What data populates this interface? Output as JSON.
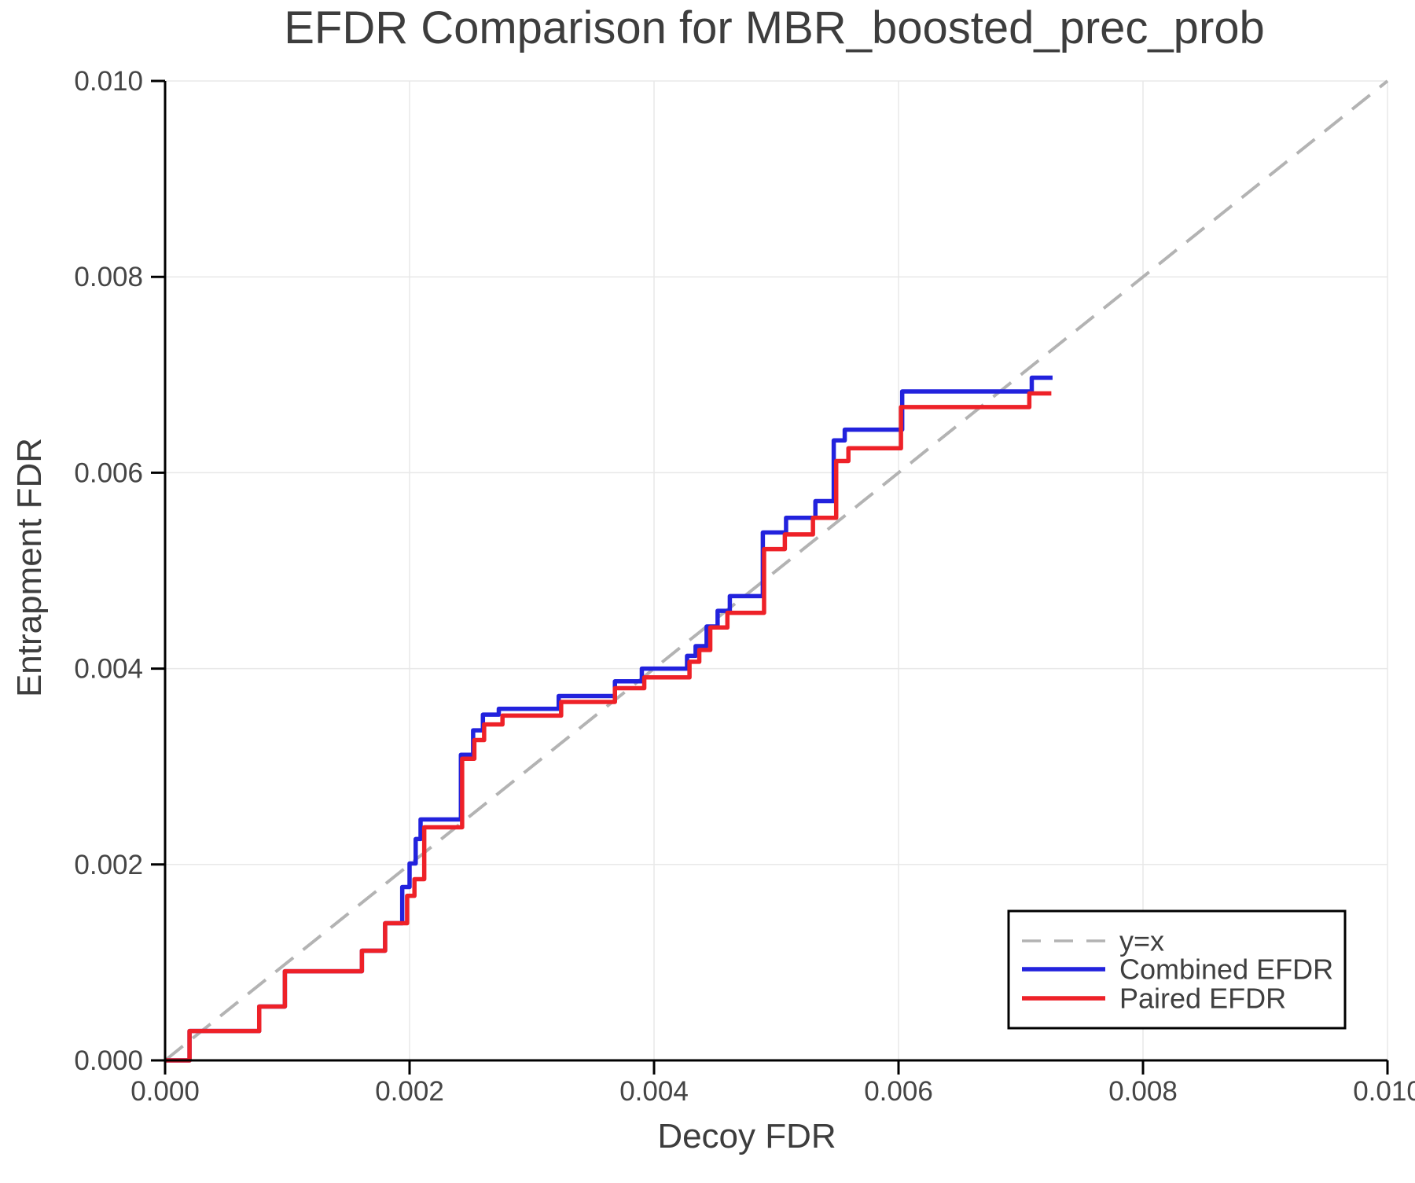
{
  "colors": {
    "background": "#ffffff",
    "grid": "#e8e8e8",
    "spine": "#000000",
    "title_text": "#3d3d3d",
    "tick_text": "#454545",
    "legend_border": "#000000",
    "identity_line": "#b3b3b3",
    "combined_line": "#2222dd",
    "paired_line": "#ee2128"
  },
  "chart_data": {
    "type": "line",
    "title": "EFDR Comparison for MBR_boosted_prec_prob",
    "xlabel": "Decoy FDR",
    "ylabel": "Entrapment FDR",
    "xlim": [
      0.0,
      0.01
    ],
    "ylim": [
      0.0,
      0.01
    ],
    "grid": true,
    "legend_position": "lower right",
    "x_ticks": {
      "values": [
        0.0,
        0.002,
        0.004,
        0.006,
        0.008,
        0.01
      ],
      "labels": [
        "0.000",
        "0.002",
        "0.004",
        "0.006",
        "0.008",
        "0.010"
      ]
    },
    "y_ticks": {
      "values": [
        0.0,
        0.002,
        0.004,
        0.006,
        0.008,
        0.01
      ],
      "labels": [
        "0.000",
        "0.002",
        "0.004",
        "0.006",
        "0.008",
        "0.010"
      ]
    },
    "series": [
      {
        "name": "y=x",
        "style": "dashed",
        "color": "#b3b3b3",
        "points": [
          [
            0.0,
            0.0
          ],
          [
            0.01,
            0.01
          ]
        ]
      },
      {
        "name": "Combined EFDR",
        "style": "solid",
        "color": "#2222dd",
        "points": [
          [
            0.0,
            0.0
          ],
          [
            0.0002,
            0.0
          ],
          [
            0.0002,
            0.0003
          ],
          [
            0.00077,
            0.0003
          ],
          [
            0.00077,
            0.00055
          ],
          [
            0.00098,
            0.00055
          ],
          [
            0.00098,
            0.00091
          ],
          [
            0.00161,
            0.00091
          ],
          [
            0.00161,
            0.00112
          ],
          [
            0.0018,
            0.00112
          ],
          [
            0.0018,
            0.0014
          ],
          [
            0.00194,
            0.0014
          ],
          [
            0.00194,
            0.00177
          ],
          [
            0.002,
            0.00177
          ],
          [
            0.002,
            0.00201
          ],
          [
            0.00205,
            0.00201
          ],
          [
            0.00205,
            0.00226
          ],
          [
            0.00209,
            0.00226
          ],
          [
            0.00209,
            0.00246
          ],
          [
            0.00242,
            0.00246
          ],
          [
            0.00242,
            0.00312
          ],
          [
            0.00252,
            0.00312
          ],
          [
            0.00252,
            0.00337
          ],
          [
            0.0026,
            0.00337
          ],
          [
            0.0026,
            0.00353
          ],
          [
            0.00273,
            0.00353
          ],
          [
            0.00273,
            0.00359
          ],
          [
            0.00322,
            0.00359
          ],
          [
            0.00322,
            0.00372
          ],
          [
            0.00368,
            0.00372
          ],
          [
            0.00368,
            0.00387
          ],
          [
            0.0039,
            0.00387
          ],
          [
            0.0039,
            0.004
          ],
          [
            0.00427,
            0.004
          ],
          [
            0.00427,
            0.00413
          ],
          [
            0.00434,
            0.00413
          ],
          [
            0.00434,
            0.00423
          ],
          [
            0.00443,
            0.00423
          ],
          [
            0.00443,
            0.00443
          ],
          [
            0.00452,
            0.00443
          ],
          [
            0.00452,
            0.00459
          ],
          [
            0.00462,
            0.00459
          ],
          [
            0.00462,
            0.00474
          ],
          [
            0.00489,
            0.00474
          ],
          [
            0.00489,
            0.00539
          ],
          [
            0.00508,
            0.00539
          ],
          [
            0.00508,
            0.00554
          ],
          [
            0.00532,
            0.00554
          ],
          [
            0.00532,
            0.00571
          ],
          [
            0.00547,
            0.00571
          ],
          [
            0.00547,
            0.00633
          ],
          [
            0.00556,
            0.00633
          ],
          [
            0.00556,
            0.00644
          ],
          [
            0.00603,
            0.00644
          ],
          [
            0.00603,
            0.00683
          ],
          [
            0.00709,
            0.00683
          ],
          [
            0.00709,
            0.00697
          ],
          [
            0.00726,
            0.00697
          ]
        ]
      },
      {
        "name": "Paired EFDR",
        "style": "solid",
        "color": "#ee2128",
        "points": [
          [
            0.0,
            0.0
          ],
          [
            0.0002,
            0.0
          ],
          [
            0.0002,
            0.0003
          ],
          [
            0.00077,
            0.0003
          ],
          [
            0.00077,
            0.00055
          ],
          [
            0.00098,
            0.00055
          ],
          [
            0.00098,
            0.00091
          ],
          [
            0.00161,
            0.00091
          ],
          [
            0.00161,
            0.00112
          ],
          [
            0.0018,
            0.00112
          ],
          [
            0.0018,
            0.0014
          ],
          [
            0.00198,
            0.0014
          ],
          [
            0.00198,
            0.00168
          ],
          [
            0.00204,
            0.00168
          ],
          [
            0.00204,
            0.00185
          ],
          [
            0.00212,
            0.00185
          ],
          [
            0.00212,
            0.00238
          ],
          [
            0.00243,
            0.00238
          ],
          [
            0.00243,
            0.00308
          ],
          [
            0.00253,
            0.00308
          ],
          [
            0.00253,
            0.00327
          ],
          [
            0.00261,
            0.00327
          ],
          [
            0.00261,
            0.00343
          ],
          [
            0.00276,
            0.00343
          ],
          [
            0.00276,
            0.00352
          ],
          [
            0.00324,
            0.00352
          ],
          [
            0.00324,
            0.00366
          ],
          [
            0.00368,
            0.00366
          ],
          [
            0.00368,
            0.0038
          ],
          [
            0.00392,
            0.0038
          ],
          [
            0.00392,
            0.00391
          ],
          [
            0.00429,
            0.00391
          ],
          [
            0.00429,
            0.00407
          ],
          [
            0.00437,
            0.00407
          ],
          [
            0.00437,
            0.00419
          ],
          [
            0.00446,
            0.00419
          ],
          [
            0.00446,
            0.00442
          ],
          [
            0.0046,
            0.00442
          ],
          [
            0.0046,
            0.00457
          ],
          [
            0.0049,
            0.00457
          ],
          [
            0.0049,
            0.00522
          ],
          [
            0.00507,
            0.00522
          ],
          [
            0.00507,
            0.00537
          ],
          [
            0.0053,
            0.00537
          ],
          [
            0.0053,
            0.00554
          ],
          [
            0.00549,
            0.00554
          ],
          [
            0.00549,
            0.00612
          ],
          [
            0.00559,
            0.00612
          ],
          [
            0.00559,
            0.00625
          ],
          [
            0.00602,
            0.00625
          ],
          [
            0.00602,
            0.00667
          ],
          [
            0.00707,
            0.00667
          ],
          [
            0.00707,
            0.00681
          ],
          [
            0.00725,
            0.00681
          ]
        ]
      }
    ]
  }
}
